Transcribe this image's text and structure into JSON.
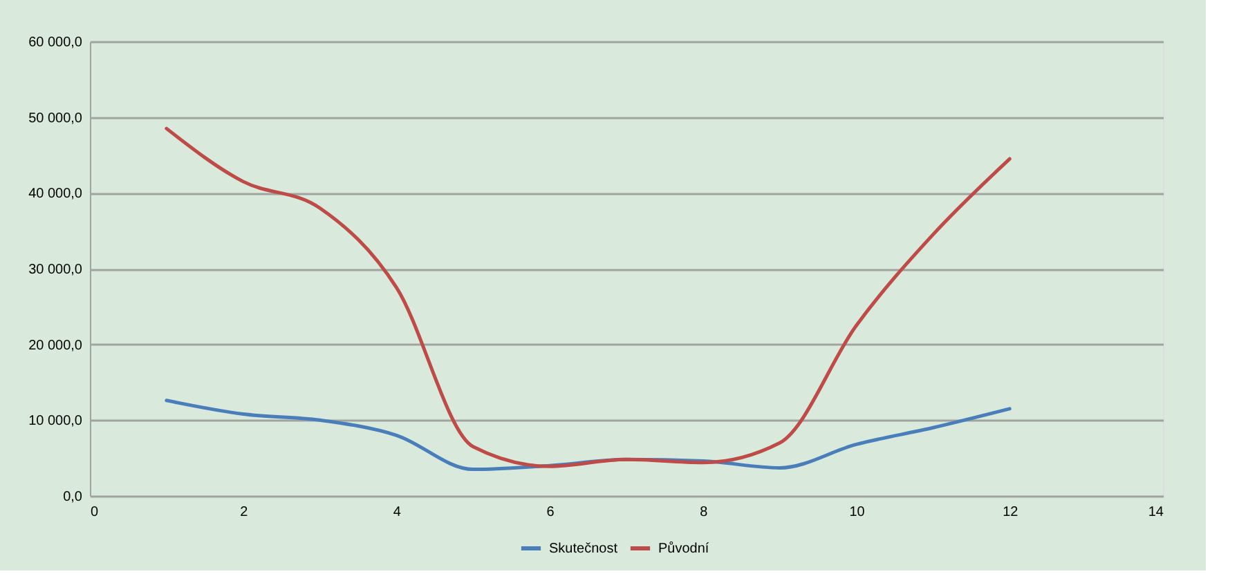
{
  "chart_data": {
    "type": "line",
    "x": [
      1,
      2,
      3,
      4,
      5,
      6,
      7,
      8,
      9,
      10,
      11,
      12
    ],
    "series": [
      {
        "name": "Skutečnost",
        "color": "#4a7ebb",
        "values": [
          12600,
          10800,
          10000,
          8000,
          3500,
          4000,
          4800,
          4600,
          3700,
          6800,
          9000,
          11500
        ]
      },
      {
        "name": "Původní",
        "color": "#be4b48",
        "values": [
          48500,
          41500,
          38000,
          27500,
          6500,
          3900,
          4800,
          4400,
          7000,
          22500,
          34500,
          44500
        ]
      }
    ],
    "xlim": [
      0,
      14
    ],
    "xticks": [
      0,
      2,
      4,
      6,
      8,
      10,
      12,
      14
    ],
    "ylim": [
      0,
      60000
    ],
    "yticks": [
      {
        "value": 0,
        "label": "0,0"
      },
      {
        "value": 10000,
        "label": "10 000,0"
      },
      {
        "value": 20000,
        "label": "20 000,0"
      },
      {
        "value": 30000,
        "label": "30 000,0"
      },
      {
        "value": 40000,
        "label": "40 000,0"
      },
      {
        "value": 50000,
        "label": "50 000,0"
      },
      {
        "value": 60000,
        "label": "60 000,0"
      }
    ],
    "grid": "y",
    "legend": "bottom",
    "marker": "none",
    "line_style": "solid"
  }
}
